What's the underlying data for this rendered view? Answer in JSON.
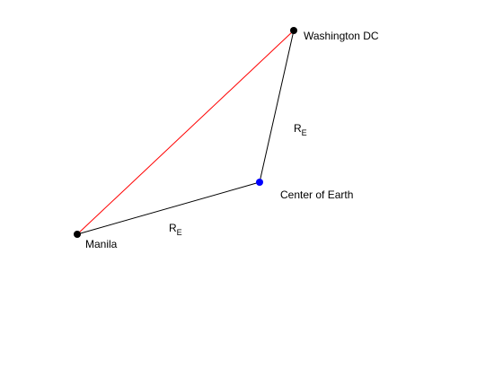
{
  "diagram": {
    "points": {
      "washington": {
        "label": "Washington DC",
        "color": "#000000"
      },
      "manila": {
        "label": "Manila",
        "color": "#000000"
      },
      "center": {
        "label": "Center of Earth",
        "color": "#0000ff"
      }
    },
    "segments": {
      "chord": {
        "from": "manila",
        "to": "washington",
        "color": "#ff0000"
      },
      "radius_dc": {
        "from": "center",
        "to": "washington",
        "color": "#000000",
        "label_main": "R",
        "label_sub": "E"
      },
      "radius_manila": {
        "from": "manila",
        "to": "center",
        "color": "#000000",
        "label_main": "R",
        "label_sub": "E"
      }
    }
  }
}
